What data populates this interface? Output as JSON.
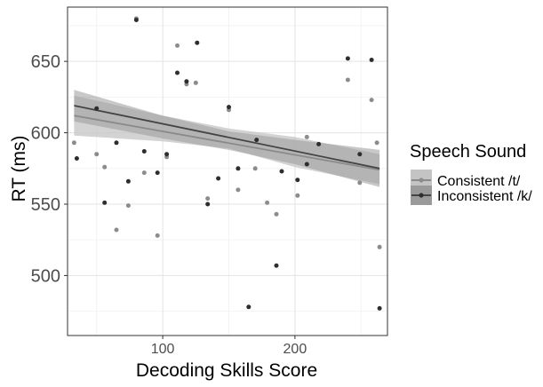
{
  "chart_data": {
    "type": "scatter",
    "xlabel": "Decoding Skills Score",
    "ylabel": "RT (ms)",
    "xlim": [
      28,
      270
    ],
    "ylim": [
      458,
      688
    ],
    "x_ticks": [
      100,
      200
    ],
    "x_tick_labels": [
      "100",
      "200"
    ],
    "y_ticks": [
      500,
      550,
      600,
      650
    ],
    "y_tick_labels": [
      "500",
      "550",
      "600",
      "650"
    ],
    "grid": true,
    "legend_placement": "right",
    "legend": {
      "title": "Speech Sound",
      "entries": [
        "Consistent /t/",
        "Inconsistent /k/"
      ]
    },
    "colors": {
      "consistent_points": "#8c8c8c",
      "inconsistent_points": "#2e2e2e",
      "consistent_band": "#c4c4c4",
      "inconsistent_band": "#9a9a9a",
      "consistent_line": "#8a8a8a",
      "inconsistent_line": "#444444"
    },
    "series": [
      {
        "name": "Consistent /t/",
        "x": [
          33,
          50,
          56,
          65,
          74,
          80,
          86,
          96,
          103,
          111,
          118,
          125,
          134,
          150,
          157,
          170,
          179,
          186,
          202,
          209,
          240,
          249,
          258,
          262,
          264
        ],
        "y": [
          593,
          585,
          576,
          532,
          549,
          680,
          572,
          528,
          583,
          661,
          634,
          635,
          554,
          616,
          560,
          575,
          551,
          543,
          556,
          597,
          637,
          565,
          623,
          593,
          520
        ],
        "trend": {
          "x0": 33,
          "y0": 612,
          "x1": 264,
          "y1": 574
        },
        "band": {
          "x": [
            33,
            100,
            150,
            200,
            264
          ],
          "lower": [
            598,
            594,
            589,
            576,
            564
          ],
          "upper": [
            626,
            612,
            603,
            597,
            585
          ]
        }
      },
      {
        "name": "Inconsistent /k/",
        "x": [
          35,
          50,
          56,
          65,
          74,
          80,
          86,
          96,
          103,
          111,
          118,
          126,
          134,
          142,
          150,
          157,
          165,
          171,
          186,
          190,
          202,
          209,
          218,
          240,
          249,
          258,
          264
        ],
        "y": [
          582,
          617,
          551,
          593,
          566,
          679,
          587,
          572,
          585,
          642,
          636,
          663,
          550,
          568,
          618,
          575,
          478,
          595,
          507,
          573,
          567,
          578,
          592,
          652,
          585,
          651,
          477
        ],
        "trend": {
          "x0": 33,
          "y0": 619,
          "x1": 264,
          "y1": 575
        },
        "band": {
          "x": [
            33,
            100,
            150,
            200,
            264
          ],
          "lower": [
            608,
            596,
            588,
            578,
            562
          ],
          "upper": [
            630,
            612,
            601,
            595,
            588
          ]
        }
      }
    ],
    "hidden_text_note": ""
  }
}
